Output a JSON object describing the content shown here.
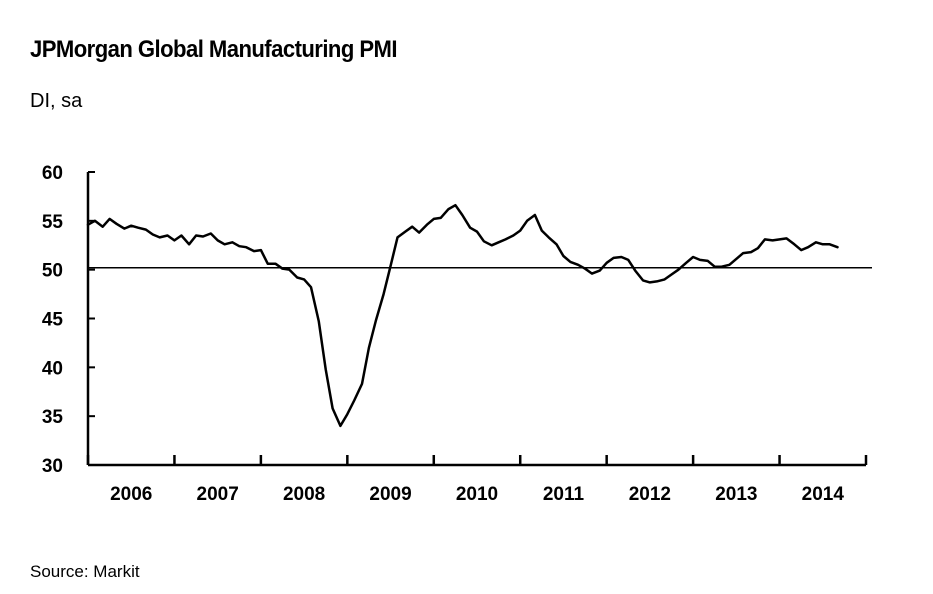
{
  "header": {
    "title": "JPMorgan Global Manufacturing PMI",
    "subtitle": "DI, sa"
  },
  "footer": {
    "source": "Source: Markit"
  },
  "chart_data": {
    "type": "line",
    "title": "JPMorgan Global Manufacturing PMI",
    "ylabel": "DI, sa",
    "xlabel": "",
    "ylim": [
      30,
      60
    ],
    "yticks": [
      "30",
      "35",
      "40",
      "45",
      "50",
      "55",
      "60"
    ],
    "xlim": [
      2006.0,
      2015.0
    ],
    "xtick_labels": [
      "2006",
      "2007",
      "2008",
      "2009",
      "2010",
      "2011",
      "2012",
      "2013",
      "2014"
    ],
    "reference_line": 50.2,
    "grid": false,
    "series": [
      {
        "name": "Global Manufacturing PMI",
        "color": "#000000",
        "x": [
          2006.0,
          2006.08,
          2006.17,
          2006.25,
          2006.33,
          2006.42,
          2006.5,
          2006.58,
          2006.67,
          2006.75,
          2006.83,
          2006.92,
          2007.0,
          2007.08,
          2007.17,
          2007.25,
          2007.33,
          2007.42,
          2007.5,
          2007.58,
          2007.67,
          2007.75,
          2007.83,
          2007.92,
          2008.0,
          2008.08,
          2008.17,
          2008.25,
          2008.33,
          2008.42,
          2008.5,
          2008.58,
          2008.67,
          2008.75,
          2008.83,
          2008.92,
          2009.0,
          2009.08,
          2009.17,
          2009.25,
          2009.33,
          2009.42,
          2009.5,
          2009.58,
          2009.67,
          2009.75,
          2009.83,
          2009.92,
          2010.0,
          2010.08,
          2010.17,
          2010.25,
          2010.33,
          2010.42,
          2010.5,
          2010.58,
          2010.67,
          2010.75,
          2010.83,
          2010.92,
          2011.0,
          2011.08,
          2011.17,
          2011.25,
          2011.33,
          2011.42,
          2011.5,
          2011.58,
          2011.67,
          2011.75,
          2011.83,
          2011.92,
          2012.0,
          2012.08,
          2012.17,
          2012.25,
          2012.33,
          2012.42,
          2012.5,
          2012.58,
          2012.67,
          2012.75,
          2012.83,
          2012.92,
          2013.0,
          2013.08,
          2013.17,
          2013.25,
          2013.33,
          2013.42,
          2013.5,
          2013.58,
          2013.67,
          2013.75,
          2013.83,
          2013.92,
          2014.0,
          2014.08,
          2014.17,
          2014.25,
          2014.33,
          2014.42,
          2014.5,
          2014.58,
          2014.67
        ],
        "values": [
          54.6,
          55.0,
          54.4,
          55.2,
          54.7,
          54.2,
          54.5,
          54.3,
          54.1,
          53.6,
          53.3,
          53.5,
          53.0,
          53.5,
          52.6,
          53.5,
          53.4,
          53.7,
          53.0,
          52.6,
          52.8,
          52.4,
          52.3,
          51.9,
          52.0,
          50.6,
          50.6,
          50.1,
          50.0,
          49.2,
          49.0,
          48.2,
          44.7,
          39.8,
          35.8,
          34.0,
          35.2,
          36.6,
          38.3,
          42.0,
          44.8,
          47.5,
          50.4,
          53.3,
          53.9,
          54.4,
          53.8,
          54.6,
          55.2,
          55.3,
          56.2,
          56.6,
          55.6,
          54.3,
          53.9,
          52.9,
          52.5,
          52.8,
          53.1,
          53.5,
          54.0,
          55.0,
          55.6,
          54.0,
          53.3,
          52.6,
          51.4,
          50.8,
          50.5,
          50.1,
          49.6,
          49.9,
          50.7,
          51.2,
          51.3,
          51.0,
          49.9,
          48.9,
          48.7,
          48.8,
          49.0,
          49.5,
          50.0,
          50.7,
          51.3,
          51.0,
          50.9,
          50.3,
          50.3,
          50.5,
          51.1,
          51.7,
          51.8,
          52.2,
          53.1,
          53.0,
          53.1,
          53.2,
          52.6,
          52.0,
          52.3,
          52.8,
          52.6,
          52.6,
          52.3
        ]
      }
    ]
  }
}
